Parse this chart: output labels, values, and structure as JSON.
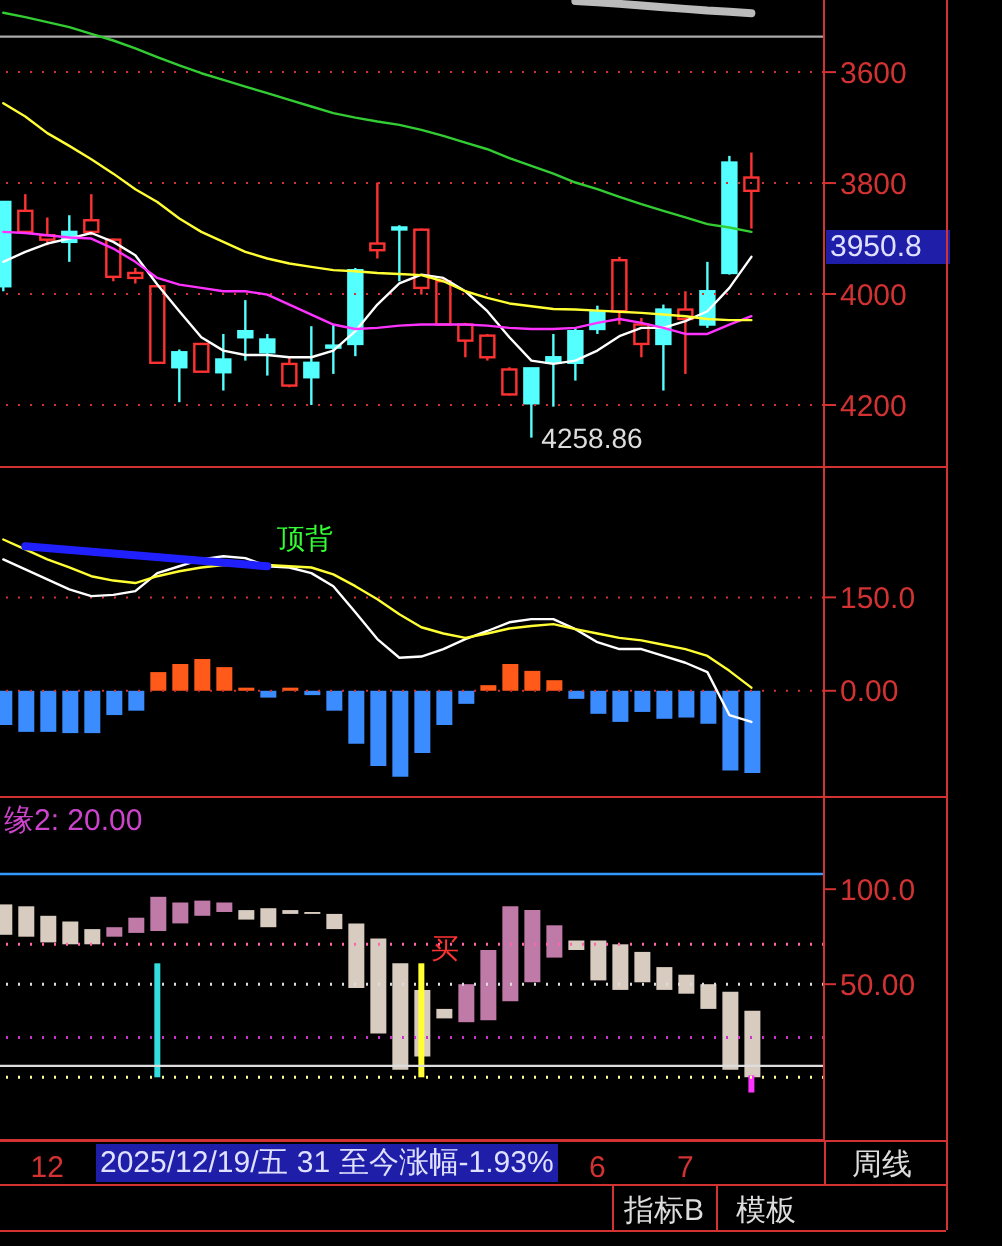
{
  "chart_data": [
    {
      "type": "candlestick",
      "categories": [
        null,
        null,
        null,
        null,
        null,
        null,
        null,
        null,
        null,
        null,
        null,
        null,
        null,
        null,
        null,
        null,
        null,
        null,
        null,
        null,
        null,
        null,
        null,
        null,
        null,
        null,
        null,
        null,
        null,
        null,
        null,
        null,
        null,
        null,
        null
      ],
      "tick_labels": "y",
      "ylim": [
        4310,
        3470
      ],
      "yticks": [
        3600,
        3800,
        4000,
        4200
      ],
      "grid": "y",
      "series": [
        {
          "ohlc": [
            [
              3986,
              3995,
              3834,
              3834
            ],
            [
              3850,
              3890,
              3820,
              3888
            ],
            [
              3894,
              3912,
              3862,
              3902
            ],
            [
              3906,
              3942,
              3858,
              3888
            ],
            [
              3867,
              3894,
              3820,
              3888
            ],
            [
              3902,
              3977,
              3900,
              3969
            ],
            [
              3962,
              3981,
              3953,
              3971
            ],
            [
              3986,
              4124,
              3983,
              4124
            ],
            [
              4132,
              4195,
              4100,
              4105
            ],
            [
              4090,
              4140,
              4088,
              4140
            ],
            [
              4141,
              4174,
              4072,
              4118
            ],
            [
              4078,
              4120,
              4011,
              4067
            ],
            [
              4105,
              4147,
              4072,
              4082
            ],
            [
              4126,
              4168,
              4114,
              4165
            ],
            [
              4150,
              4200,
              4058,
              4124
            ],
            [
              4096,
              4144,
              4055,
              4093
            ],
            [
              4090,
              4112,
              3953,
              3957
            ],
            [
              3909,
              3936,
              3799,
              3921
            ],
            [
              3882,
              3977,
              3876,
              3880
            ],
            [
              3884,
              4001,
              3882,
              3989
            ],
            [
              3977,
              4055,
              3971,
              4055
            ],
            [
              4055,
              4114,
              4052,
              4084
            ],
            [
              4075,
              4120,
              4072,
              4114
            ],
            [
              4136,
              4183,
              4132,
              4181
            ],
            [
              4197,
              4258.86,
              4134,
              4134
            ],
            [
              4124,
              4203,
              4072,
              4114
            ],
            [
              4124,
              4156,
              4061,
              4067
            ],
            [
              4063,
              4072,
              4021,
              4031
            ],
            [
              3939,
              4055,
              3933,
              4031
            ],
            [
              4055,
              4114,
              4043,
              4090
            ],
            [
              4090,
              4174,
              4019,
              4028
            ],
            [
              4028,
              4144,
              3995,
              4045
            ],
            [
              4055,
              4061,
              3942,
              3995
            ],
            [
              3962,
              3965,
              3751,
              3763
            ],
            [
              3790,
              3882,
              3745,
              3814
            ]
          ],
          "colors": [
            "#54ffff",
            "#ff3232",
            "#ff3232",
            "#54ffff",
            "#ff3232",
            "#ff3232",
            "#ff3232",
            "#ff3232",
            "#54ffff",
            "#ff3232",
            "#54ffff",
            "#54ffff",
            "#54ffff",
            "#ff3232",
            "#54ffff",
            "#54ffff",
            "#54ffff",
            "#ff3232",
            "#54ffff",
            "#ff3232",
            "#ff3232",
            "#ff3232",
            "#ff3232",
            "#ff3232",
            "#54ffff",
            "#54ffff",
            "#54ffff",
            "#54ffff",
            "#ff3232",
            "#ff3232",
            "#54ffff",
            "#ff3232",
            "#54ffff",
            "#54ffff",
            "#ff3232"
          ],
          "value_labels": [
            null,
            null,
            null,
            null,
            null,
            null,
            null,
            null,
            null,
            null,
            null,
            null,
            null,
            null,
            null,
            null,
            null,
            null,
            null,
            null,
            null,
            null,
            null,
            null,
            "4258.86",
            null,
            null,
            null,
            null,
            null,
            null,
            null,
            null,
            null,
            null
          ]
        },
        {
          "type": "line",
          "color": "#ffffff",
          "values": [
            3942,
            3924,
            3909,
            3900,
            3890,
            3906,
            3930,
            3983,
            4031,
            4078,
            4102,
            4110,
            4110,
            4114,
            4114,
            4102,
            4067,
            4019,
            3981,
            3965,
            3971,
            3995,
            4031,
            4078,
            4120,
            4126,
            4120,
            4102,
            4076,
            4061,
            4061,
            4049,
            4031,
            3989,
            3933
          ]
        },
        {
          "type": "line",
          "color": "#ff33ff",
          "values": [
            3888,
            3890,
            3894,
            3898,
            3900,
            3918,
            3942,
            3971,
            3983,
            3989,
            3995,
            3995,
            4001,
            4019,
            4037,
            4055,
            4063,
            4061,
            4057,
            4055,
            4055,
            4055,
            4057,
            4061,
            4063,
            4063,
            4061,
            4052,
            4045,
            4052,
            4061,
            4072,
            4072,
            4055,
            4040
          ]
        },
        {
          "type": "line",
          "color": "#ffff33",
          "values": [
            3656,
            3680,
            3710,
            3733,
            3757,
            3783,
            3811,
            3834,
            3864,
            3888,
            3906,
            3924,
            3936,
            3945,
            3951,
            3957,
            3959,
            3962,
            3964,
            3966,
            3977,
            3995,
            4007,
            4017,
            4022,
            4027,
            4028,
            4030,
            4032,
            4034,
            4037,
            4040,
            4045,
            4047,
            4047
          ]
        },
        {
          "type": "line",
          "color": "#33cc33",
          "values": [
            3493,
            3501,
            3510,
            3519,
            3531,
            3543,
            3557,
            3573,
            3588,
            3602,
            3614,
            3626,
            3638,
            3650,
            3662,
            3674,
            3682,
            3689,
            3695,
            3704,
            3715,
            3727,
            3739,
            3755,
            3769,
            3783,
            3799,
            3811,
            3825,
            3838,
            3850,
            3862,
            3874,
            3880,
            3888
          ]
        },
        {
          "type": "line",
          "color": "#bbbbbb",
          "values": [
            null,
            null,
            null,
            null,
            null,
            null,
            null,
            null,
            null,
            null,
            null,
            null,
            null,
            null,
            null,
            null,
            null,
            null,
            null,
            null,
            null,
            null,
            null,
            null,
            null,
            null,
            3472,
            3474,
            3477,
            3480,
            3483,
            3486,
            3489,
            3491,
            3494
          ]
        }
      ],
      "ref_lines": [
        {
          "axis": "y",
          "value": 3536,
          "color": "#aaaaaa"
        }
      ],
      "annotations": [
        "3950.8"
      ]
    },
    {
      "type": "bar",
      "categories": [
        null,
        null,
        null,
        null,
        null,
        null,
        null,
        null,
        null,
        null,
        null,
        null,
        null,
        null,
        null,
        null,
        null,
        null,
        null,
        null,
        null,
        null,
        null,
        null,
        null,
        null,
        null,
        null,
        null,
        null,
        null,
        null,
        null,
        null,
        null
      ],
      "tick_labels": "y",
      "ylim": [
        -169,
        361
      ],
      "yticks": [
        {
          "value": 0,
          "label": "0.00"
        },
        {
          "value": 150,
          "label": "150.0"
        }
      ],
      "grid": "y",
      "series": [
        {
          "values": [
            -55,
            -66,
            -66,
            -68,
            -68,
            -39,
            -32,
            30,
            43,
            51,
            38,
            5,
            -11,
            5,
            -7,
            -32,
            -85,
            -121,
            -138,
            -100,
            -55,
            -21,
            9,
            43,
            32,
            17,
            -13,
            -37,
            -50,
            -34,
            -45,
            -43,
            -53,
            -128,
            -132
          ],
          "colors": [
            "#3a8cff",
            "#3a8cff",
            "#3a8cff",
            "#3a8cff",
            "#3a8cff",
            "#3a8cff",
            "#3a8cff",
            "#ff5a1a",
            "#ff5a1a",
            "#ff5a1a",
            "#ff5a1a",
            "#ff5a1a",
            "#3a8cff",
            "#ff5a1a",
            "#3a8cff",
            "#3a8cff",
            "#3a8cff",
            "#3a8cff",
            "#3a8cff",
            "#3a8cff",
            "#3a8cff",
            "#3a8cff",
            "#ff5a1a",
            "#ff5a1a",
            "#ff5a1a",
            "#ff5a1a",
            "#3a8cff",
            "#3a8cff",
            "#3a8cff",
            "#3a8cff",
            "#3a8cff",
            "#3a8cff",
            "#3a8cff",
            "#3a8cff",
            "#3a8cff"
          ]
        },
        {
          "type": "line",
          "color": "#ffffff",
          "values": [
            211,
            195,
            179,
            163,
            152,
            154,
            160,
            189,
            200,
            211,
            216,
            213,
            200,
            198,
            189,
            168,
            126,
            83,
            53,
            55,
            67,
            83,
            96,
            110,
            115,
            115,
            99,
            78,
            67,
            67,
            56,
            45,
            30,
            -39,
            -50
          ]
        },
        {
          "type": "line",
          "color": "#ffff33",
          "values": [
            243,
            227,
            211,
            198,
            184,
            177,
            173,
            184,
            192,
            198,
            202,
            202,
            202,
            200,
            198,
            187,
            168,
            147,
            123,
            102,
            92,
            85,
            92,
            100,
            104,
            107,
            99,
            92,
            85,
            81,
            74,
            67,
            56,
            32,
            5
          ]
        },
        {
          "type": "line",
          "color": "#2020ff",
          "values": [
            null,
            232,
            null,
            null,
            null,
            null,
            null,
            null,
            null,
            null,
            null,
            null,
            200,
            null,
            null,
            null,
            null,
            null,
            null,
            null,
            null,
            null,
            null,
            null,
            null,
            null,
            null,
            null,
            null,
            null,
            null,
            null,
            null,
            null,
            null
          ],
          "value_labels": [
            null,
            null,
            null,
            null,
            null,
            null,
            null,
            null,
            null,
            null,
            null,
            null,
            "顶背",
            null,
            null,
            null,
            null,
            null,
            null,
            null,
            null,
            null,
            null,
            null,
            null,
            null,
            null,
            null,
            null,
            null,
            null,
            null,
            null,
            null,
            null
          ]
        }
      ]
    },
    {
      "type": "bar",
      "categories": [
        null,
        null,
        "12",
        null,
        null,
        null,
        null,
        null,
        null,
        null,
        null,
        null,
        null,
        null,
        null,
        null,
        null,
        null,
        null,
        null,
        null,
        null,
        null,
        null,
        null,
        null,
        null,
        "6",
        null,
        null,
        null,
        "7",
        null,
        null,
        null
      ],
      "ylim": [
        -32,
        148
      ],
      "yticks": [
        {
          "value": 50,
          "label": "50.00"
        },
        {
          "value": 100,
          "label": "100.0"
        }
      ],
      "series": [
        {
          "base": [
            76,
            75,
            72,
            71,
            71,
            75,
            77,
            78,
            82,
            86,
            88,
            84,
            80,
            87,
            87,
            79,
            48,
            24,
            5,
            12,
            32,
            30,
            31,
            41,
            51,
            64,
            68,
            52,
            47,
            51,
            47,
            45,
            37,
            5,
            1
          ],
          "values": [
            16,
            16,
            14,
            12,
            8,
            5,
            8,
            18,
            11,
            8,
            5,
            5,
            10,
            2,
            1,
            8,
            34,
            50,
            56,
            35,
            5,
            20,
            37,
            50,
            38,
            17,
            5,
            21,
            24,
            16,
            12,
            10,
            13,
            41,
            35
          ],
          "colors": [
            "#d8ccc0",
            "#d8ccc0",
            "#d8ccc0",
            "#d8ccc0",
            "#d8ccc0",
            "#c07aa8",
            "#c07aa8",
            "#c07aa8",
            "#c07aa8",
            "#c07aa8",
            "#c07aa8",
            "#d8ccc0",
            "#d8ccc0",
            "#d8ccc0",
            "#d8ccc0",
            "#d8ccc0",
            "#d8ccc0",
            "#d8ccc0",
            "#d8ccc0",
            "#d8ccc0",
            "#d8ccc0",
            "#c07aa8",
            "#c07aa8",
            "#c07aa8",
            "#c07aa8",
            "#c07aa8",
            "#d8ccc0",
            "#d8ccc0",
            "#d8ccc0",
            "#d8ccc0",
            "#d8ccc0",
            "#d8ccc0",
            "#d8ccc0",
            "#d8ccc0",
            "#d8ccc0"
          ]
        },
        {
          "base": [
            null,
            null,
            null,
            null,
            null,
            null,
            null,
            1,
            null,
            null,
            null,
            null,
            null,
            null,
            null,
            null,
            null,
            null,
            null,
            1,
            null,
            null,
            null,
            null,
            null,
            null,
            null,
            null,
            null,
            null,
            null,
            null,
            null,
            null,
            -7
          ],
          "values": [
            null,
            null,
            null,
            null,
            null,
            null,
            null,
            60,
            null,
            null,
            null,
            null,
            null,
            null,
            null,
            null,
            null,
            null,
            null,
            60,
            null,
            null,
            null,
            null,
            null,
            null,
            null,
            null,
            null,
            null,
            null,
            null,
            null,
            null,
            9
          ],
          "colors": [
            null,
            null,
            null,
            null,
            null,
            null,
            null,
            "#33dddd",
            null,
            null,
            null,
            null,
            null,
            null,
            null,
            null,
            null,
            null,
            null,
            "#ffff33",
            null,
            null,
            null,
            null,
            null,
            null,
            null,
            null,
            null,
            null,
            null,
            null,
            null,
            null,
            "#ff33ff"
          ],
          "value_labels": [
            null,
            null,
            null,
            null,
            null,
            null,
            null,
            null,
            null,
            null,
            null,
            null,
            null,
            null,
            null,
            null,
            null,
            null,
            null,
            "买",
            null,
            null,
            null,
            null,
            null,
            null,
            null,
            null,
            null,
            null,
            null,
            null,
            null,
            null,
            null
          ]
        }
      ],
      "ref_lines": [
        {
          "axis": "y",
          "value": 108,
          "color": "#3399ff"
        },
        {
          "axis": "y",
          "value": 7,
          "color": "#dddddd"
        },
        {
          "axis": "y",
          "value": 71,
          "color": "#ff66aa",
          "line_style": "dotted"
        },
        {
          "axis": "y",
          "value": 50,
          "color": "#dddddd",
          "line_style": "dotted"
        },
        {
          "axis": "y",
          "value": 22,
          "color": "#cc33cc",
          "line_style": "dotted"
        },
        {
          "axis": "y",
          "value": 1,
          "color": "#ffff99",
          "line_style": "dotted"
        }
      ],
      "annotations": [
        "缘2: 20.00",
        "2025/12/19/五 31 至今涨幅-1.93%",
        "周线",
        "指标B",
        "模板"
      ]
    }
  ]
}
